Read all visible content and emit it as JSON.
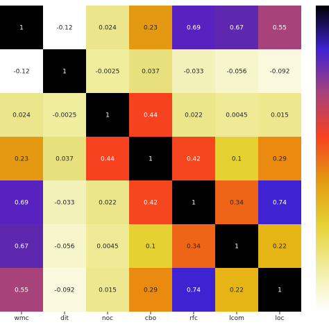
{
  "chart_data": {
    "type": "heatmap",
    "title": "",
    "xlabel": "",
    "ylabel": "",
    "x_categories": [
      "wmc",
      "dit",
      "noc",
      "cbo",
      "rfc",
      "lcom",
      "loc"
    ],
    "y_categories": [
      "",
      "",
      "",
      "",
      "",
      "",
      ""
    ],
    "values": [
      [
        1,
        -0.12,
        0.024,
        0.23,
        0.69,
        0.67,
        0.55
      ],
      [
        -0.12,
        1,
        -0.0025,
        0.037,
        -0.033,
        -0.056,
        -0.092
      ],
      [
        0.024,
        -0.0025,
        1,
        0.44,
        0.022,
        0.0045,
        0.015
      ],
      [
        0.23,
        0.037,
        0.44,
        1,
        0.42,
        0.1,
        0.29
      ],
      [
        0.69,
        -0.033,
        0.022,
        0.42,
        1,
        0.34,
        0.74
      ],
      [
        0.67,
        -0.056,
        0.0045,
        0.1,
        0.34,
        1,
        0.22
      ],
      [
        0.55,
        -0.092,
        0.015,
        0.29,
        0.74,
        0.22,
        1
      ]
    ],
    "labels": [
      [
        "1",
        "-0.12",
        "0.024",
        "0.23",
        "0.69",
        "0.67",
        "0.55"
      ],
      [
        "-0.12",
        "1",
        "-0.0025",
        "0.037",
        "-0.033",
        "-0.056",
        "-0.092"
      ],
      [
        "0.024",
        "-0.0025",
        "1",
        "0.44",
        "0.022",
        "0.0045",
        "0.015"
      ],
      [
        "0.23",
        "0.037",
        "0.44",
        "1",
        "0.42",
        "0.1",
        "0.29"
      ],
      [
        "0.69",
        "-0.033",
        "0.022",
        "0.42",
        "1",
        "0.34",
        "0.74"
      ],
      [
        "0.67",
        "-0.056",
        "0.0045",
        "0.1",
        "0.34",
        "1",
        "0.22"
      ],
      [
        "0.55",
        "-0.092",
        "0.015",
        "0.29",
        "0.74",
        "0.22",
        "1"
      ]
    ],
    "colors": [
      [
        "#000000",
        "#ffffff",
        "#ebe58c",
        "#e39a12",
        "#5722bf",
        "#5e28ae",
        "#a8427a"
      ],
      [
        "#ffffff",
        "#000000",
        "#f1ed9f",
        "#e8e07d",
        "#f3f1ba",
        "#f7f5cb",
        "#fbf9dd"
      ],
      [
        "#ebe58c",
        "#f1ed9f",
        "#000000",
        "#f6421f",
        "#ece68b",
        "#efea96",
        "#ede88f"
      ],
      [
        "#e39a12",
        "#e8e07d",
        "#f6421f",
        "#000000",
        "#f6461f",
        "#e6d132",
        "#ea8a0e"
      ],
      [
        "#5722bf",
        "#f3f1ba",
        "#ece68b",
        "#f6461f",
        "#000000",
        "#ef6517",
        "#3f23d2"
      ],
      [
        "#5e28ae",
        "#f7f5cb",
        "#efea96",
        "#e6d132",
        "#ef6517",
        "#000000",
        "#e7b416"
      ],
      [
        "#a8427a",
        "#fbf9dd",
        "#ede88f",
        "#ea8a0e",
        "#3f23d2",
        "#e7b416",
        "#000000"
      ]
    ],
    "colorbar": {
      "visible": true,
      "colors": [
        "#000000",
        "#3f23d2",
        "#a8427a",
        "#f6421f",
        "#e39a12",
        "#e6d132",
        "#f1ed9f",
        "#ffffff"
      ]
    },
    "grid": false,
    "legend": "none"
  }
}
